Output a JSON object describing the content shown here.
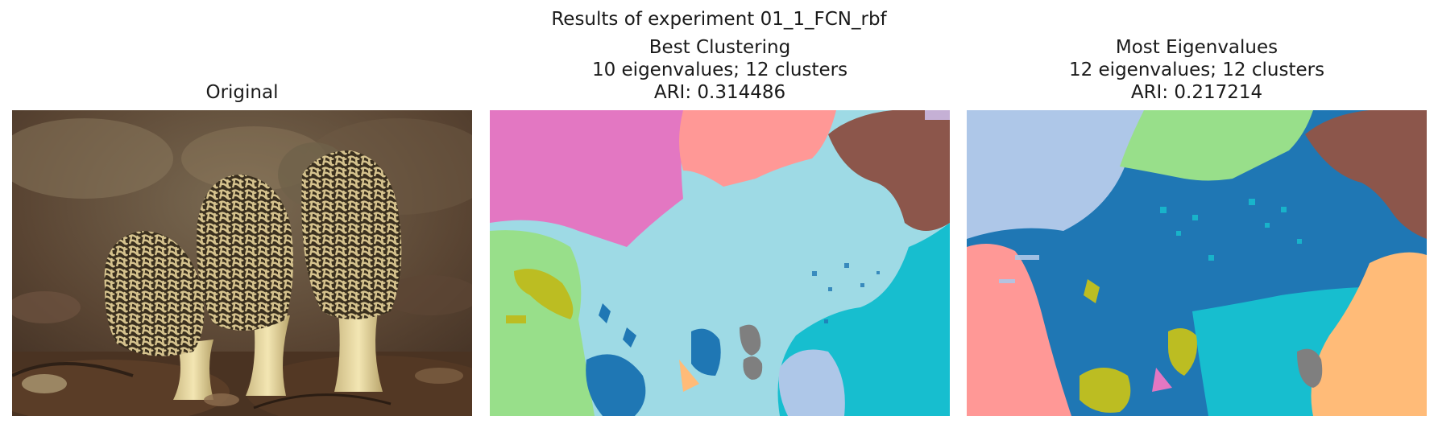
{
  "suptitle": "Results of experiment 01_1_FCN_rbf",
  "panels": [
    {
      "title_lines": [
        "Original"
      ]
    },
    {
      "title_lines": [
        "Best Clustering",
        "10 eigenvalues; 12 clusters",
        "ARI: 0.314486"
      ]
    },
    {
      "title_lines": [
        "Most Eigenvalues",
        "12 eigenvalues; 12 clusters",
        "ARI: 0.217214"
      ]
    }
  ],
  "colors": {
    "blue": "#1f77b4",
    "light_blue": "#aec7e8",
    "orange": "#ff7f0e",
    "light_orange": "#ffbb78",
    "green": "#2ca02c",
    "light_green": "#98df8a",
    "red": "#d62728",
    "pink": "#ff9896",
    "purple": "#9467bd",
    "lavender": "#c5b0d5",
    "brown": "#8c564b",
    "light_brown": "#c49c94",
    "magenta": "#e377c2",
    "light_magenta": "#f7b6d2",
    "gray": "#7f7f7f",
    "light_gray": "#c7c7c7",
    "olive": "#bcbd22",
    "light_olive": "#dbdb8d",
    "cyan": "#17becf",
    "light_cyan": "#9edae5"
  }
}
